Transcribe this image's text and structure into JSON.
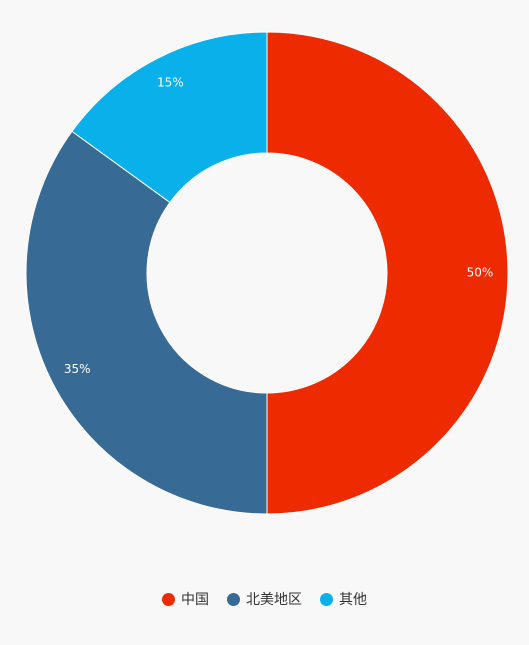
{
  "chart_data": {
    "type": "donut",
    "categories": [
      "中国",
      "北美地区",
      "其他"
    ],
    "values": [
      50,
      35,
      15
    ],
    "value_labels": [
      "50%",
      "35%",
      "15%"
    ],
    "colors": [
      "#ee2a00",
      "#386a96",
      "#0ab0ea"
    ],
    "legend": "bottom"
  }
}
